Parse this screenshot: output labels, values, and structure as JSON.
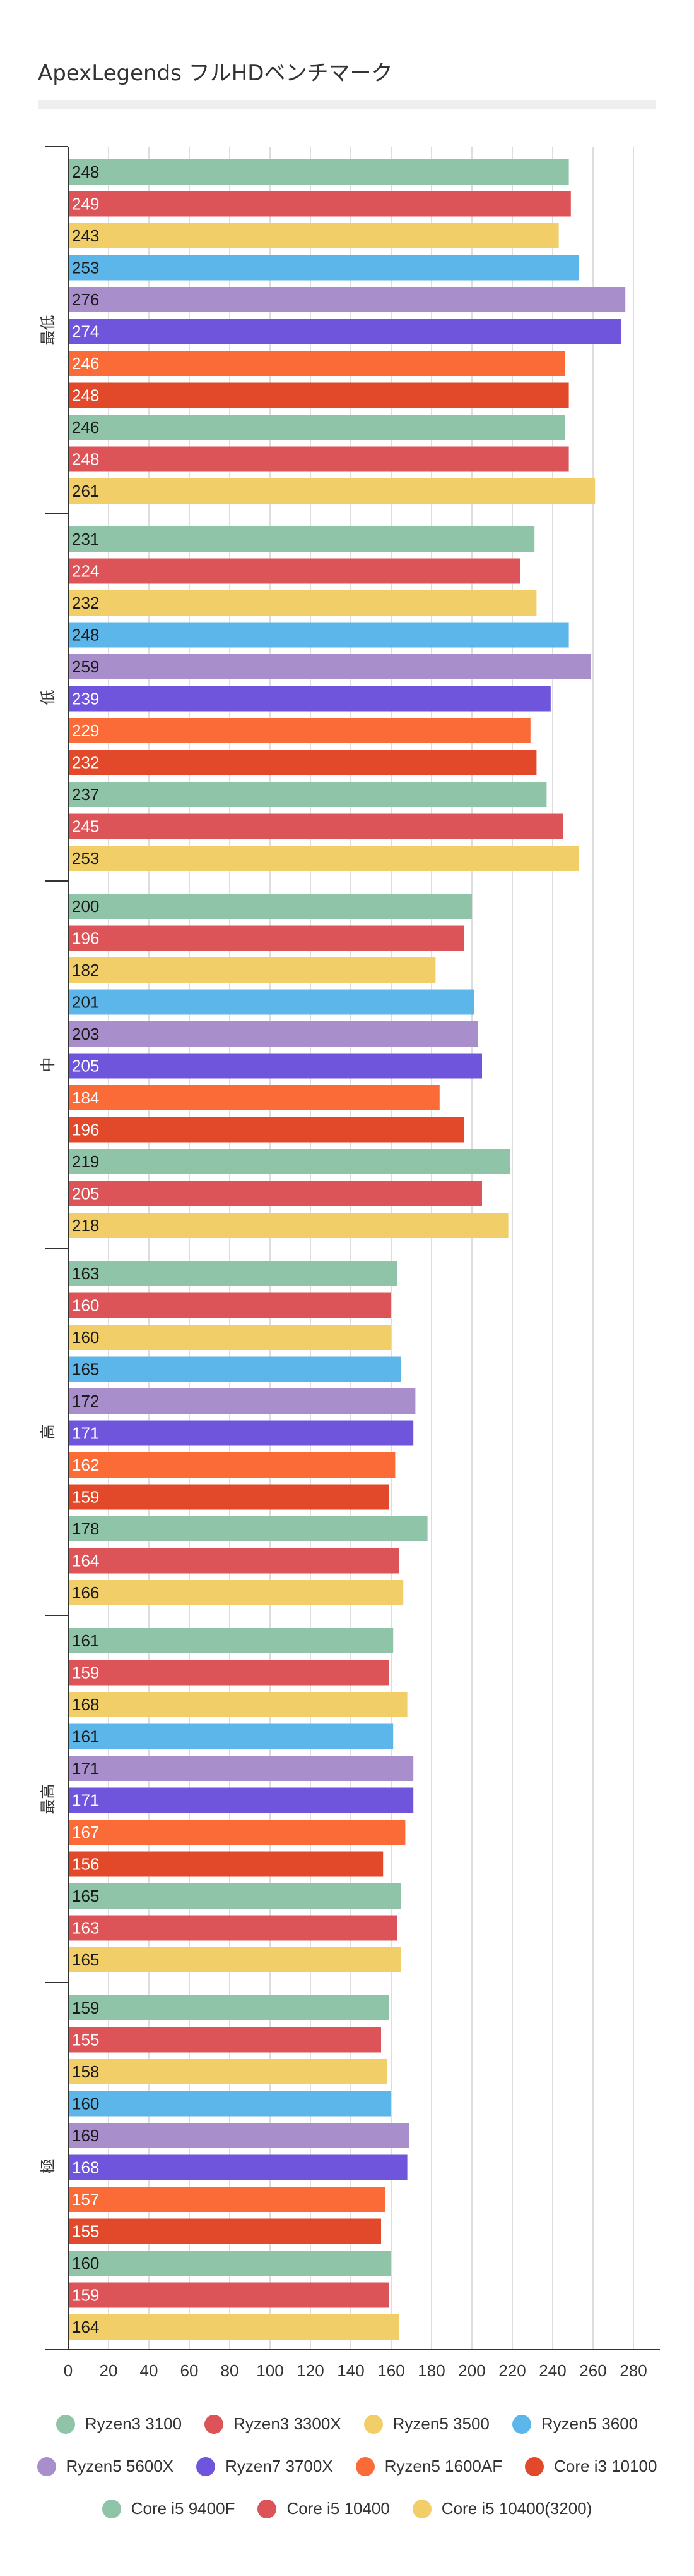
{
  "title": "ApexLegends フルHDベンチマーク",
  "colors": {
    "axis": "#333333",
    "grid": "#dddddd",
    "title_rule": "#eeeeee"
  },
  "chart_data": {
    "type": "bar",
    "orientation": "horizontal",
    "title": "ApexLegends フルHDベンチマーク",
    "xlim": [
      0,
      290
    ],
    "xticks": [
      0,
      20,
      40,
      60,
      80,
      100,
      120,
      140,
      160,
      180,
      200,
      220,
      240,
      260,
      280
    ],
    "grid": true,
    "legend_position": "bottom",
    "categories": [
      "最低",
      "低",
      "中",
      "高",
      "最高",
      "極"
    ],
    "series": [
      {
        "name": "Ryzen3 3100",
        "color": "#8fc4a8",
        "label_color": "#1a1a1a",
        "values": [
          248,
          231,
          200,
          163,
          161,
          159
        ]
      },
      {
        "name": "Ryzen3 3300X",
        "color": "#dc5458",
        "label_color": "#ffffff",
        "values": [
          249,
          224,
          196,
          160,
          159,
          155
        ]
      },
      {
        "name": "Ryzen5 3500",
        "color": "#f1ce67",
        "label_color": "#1a1a1a",
        "values": [
          243,
          232,
          182,
          160,
          168,
          158
        ]
      },
      {
        "name": "Ryzen5 3600",
        "color": "#5db6e9",
        "label_color": "#1a1a1a",
        "values": [
          253,
          248,
          201,
          165,
          161,
          160
        ]
      },
      {
        "name": "Ryzen5 5600X",
        "color": "#a88fcb",
        "label_color": "#1a1a1a",
        "values": [
          276,
          259,
          203,
          172,
          171,
          169
        ]
      },
      {
        "name": "Ryzen7 3700X",
        "color": "#6e55dc",
        "label_color": "#ffffff",
        "values": [
          274,
          239,
          205,
          171,
          171,
          168
        ]
      },
      {
        "name": "Ryzen5 1600AF",
        "color": "#fb6b38",
        "label_color": "#ffffff",
        "values": [
          246,
          229,
          184,
          162,
          167,
          157
        ]
      },
      {
        "name": "Core i3 10100",
        "color": "#e2492a",
        "label_color": "#ffffff",
        "values": [
          248,
          232,
          196,
          159,
          156,
          155
        ]
      },
      {
        "name": "Core i5 9400F",
        "color": "#8fc4a8",
        "label_color": "#1a1a1a",
        "values": [
          246,
          237,
          219,
          178,
          165,
          160
        ]
      },
      {
        "name": "Core i5 10400",
        "color": "#dc5458",
        "label_color": "#ffffff",
        "values": [
          248,
          245,
          205,
          164,
          163,
          159
        ]
      },
      {
        "name": "Core i5 10400(3200)",
        "color": "#f1ce67",
        "label_color": "#1a1a1a",
        "values": [
          261,
          253,
          218,
          166,
          165,
          164
        ]
      }
    ]
  },
  "legend_rows": [
    [
      {
        "label": "Ryzen3 3100",
        "color": "#8fc4a8"
      },
      {
        "label": "Ryzen3 3300X",
        "color": "#dc5458"
      },
      {
        "label": "Ryzen5 3500",
        "color": "#f1ce67"
      },
      {
        "label": "Ryzen5 3600",
        "color": "#5db6e9"
      }
    ],
    [
      {
        "label": "Ryzen5 5600X",
        "color": "#a88fcb"
      },
      {
        "label": "Ryzen7 3700X",
        "color": "#6e55dc"
      },
      {
        "label": "Ryzen5 1600AF",
        "color": "#fb6b38"
      },
      {
        "label": "Core i3 10100",
        "color": "#e2492a"
      }
    ],
    [
      {
        "label": "Core i5 9400F",
        "color": "#8fc4a8"
      },
      {
        "label": "Core i5 10400",
        "color": "#dc5458"
      },
      {
        "label": "Core i5 10400(3200)",
        "color": "#f1ce67"
      }
    ]
  ]
}
